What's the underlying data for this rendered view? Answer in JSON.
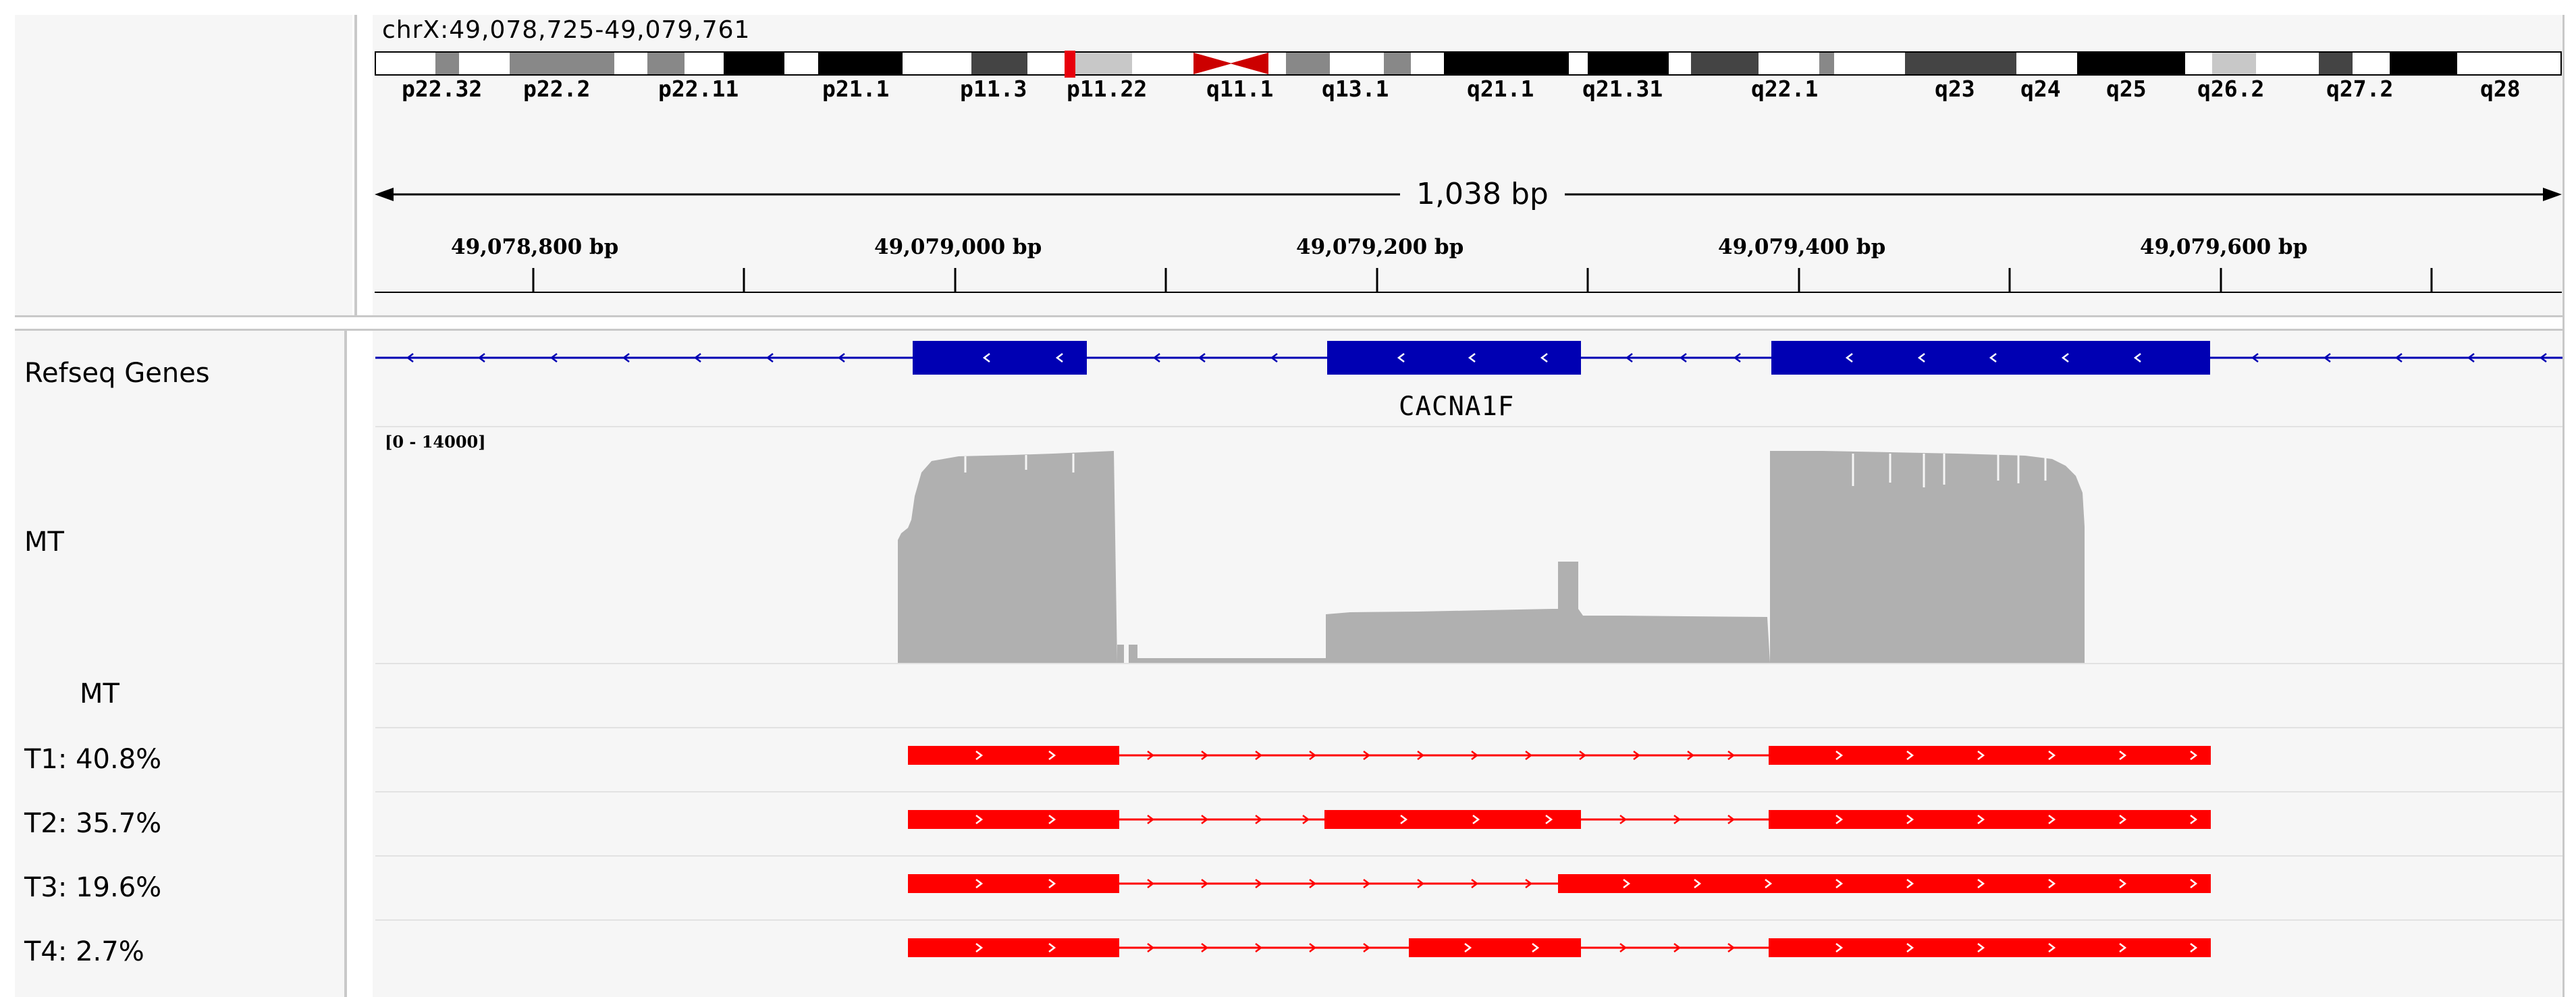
{
  "locus": "chrX:49,078,725-49,079,761",
  "ideogram": {
    "bands": [
      "p22.32",
      "p22.2",
      "p22.11",
      "p21.1",
      "p11.3",
      "p11.22",
      "q11.1",
      "q13.1",
      "q21.1",
      "q21.31",
      "q22.1",
      "q23",
      "q24",
      "q25",
      "q26.2",
      "q27.2",
      "q28"
    ]
  },
  "ruler": {
    "span": "1,038 bp",
    "ticks": [
      "49,078,800 bp",
      "49,079,000 bp",
      "49,079,200 bp",
      "49,079,400 bp",
      "49,079,600 bp"
    ]
  },
  "tracks": {
    "refseq": {
      "name": "Refseq Genes",
      "gene": "CACNA1F",
      "color": "#0000b3"
    },
    "coverage": {
      "name": "MT",
      "range": "[0 - 14000]",
      "color": "#b0b0b0"
    },
    "junctions": {
      "name": "MT"
    },
    "isoforms": [
      {
        "name": "T1: 40.8%"
      },
      {
        "name": "T2: 35.7%"
      },
      {
        "name": "T3: 19.6%"
      },
      {
        "name": "T4: 2.7%"
      }
    ],
    "isoform_color": "#ff0000"
  }
}
